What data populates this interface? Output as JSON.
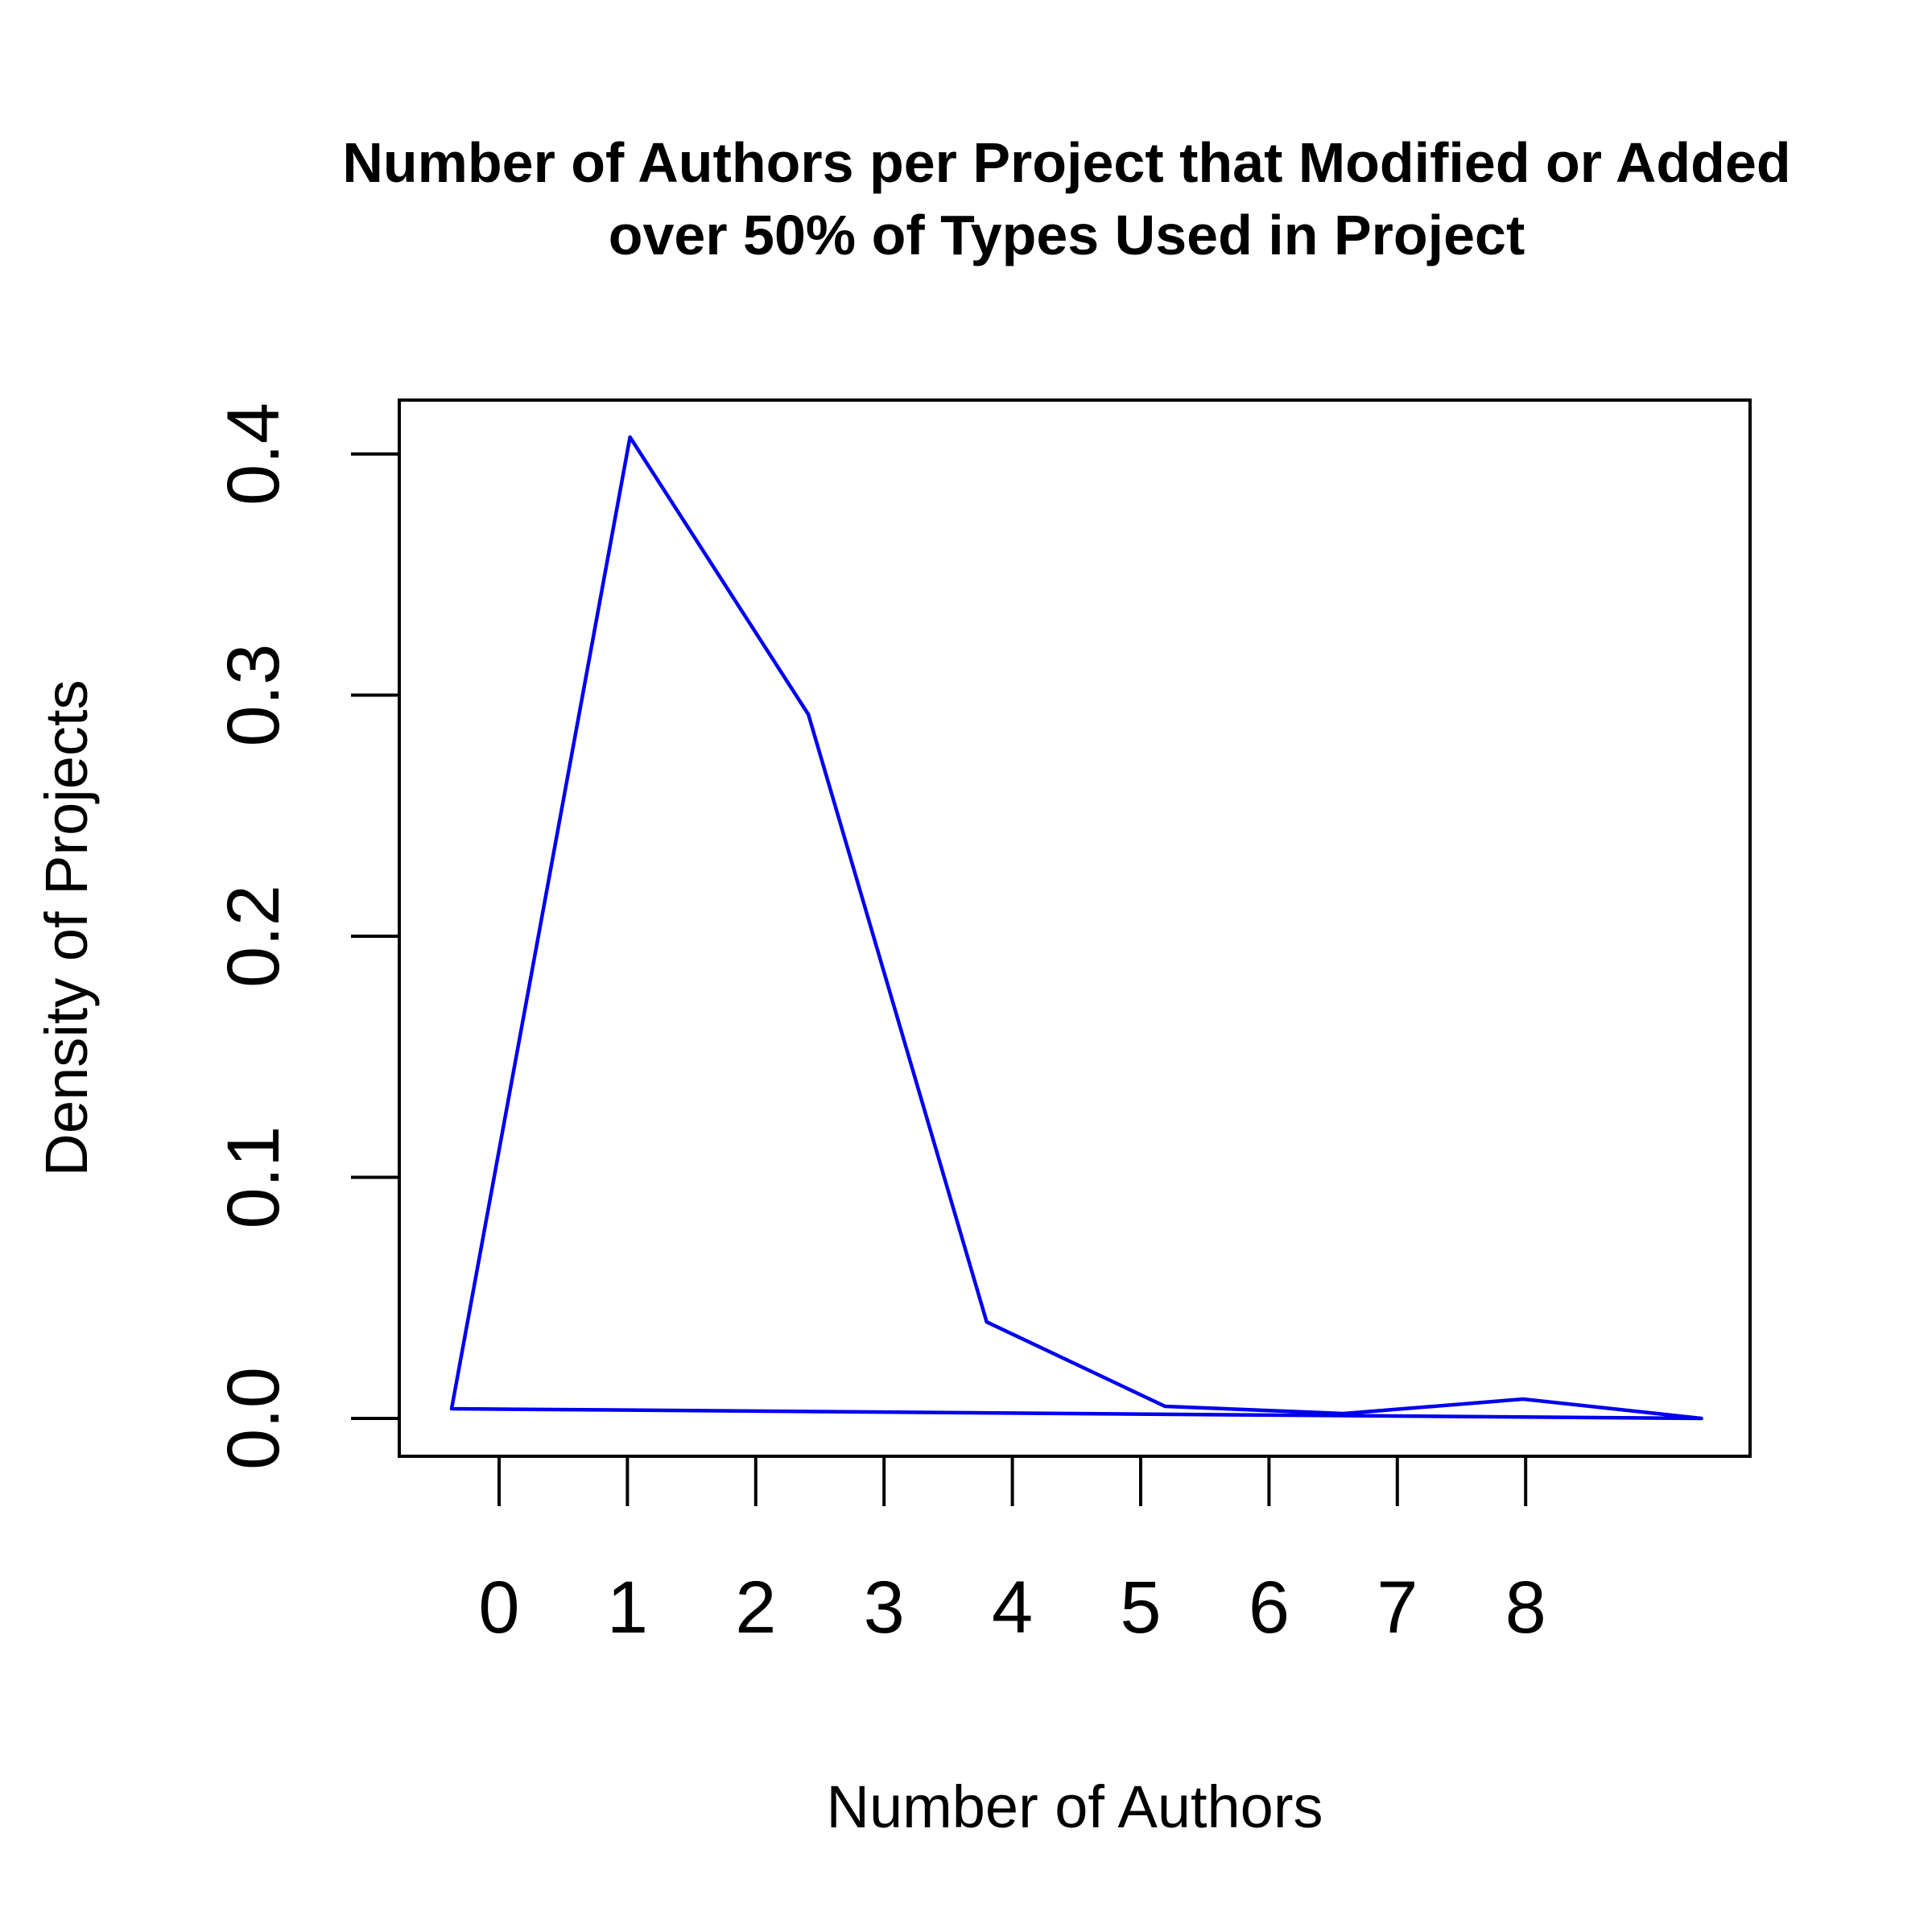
{
  "chart_data": {
    "type": "line",
    "title_lines": [
      "Number of Authors per Project that Modified or Added",
      "over 50% of Types Used in Project"
    ],
    "xlabel": "Number of Authors",
    "ylabel": "Density of Projects",
    "ylim": [
      0.0,
      0.4
    ],
    "y_ticks": [
      "0.0",
      "0.1",
      "0.2",
      "0.3",
      "0.4"
    ],
    "y_tick_values": [
      0.0,
      0.1,
      0.2,
      0.3,
      0.4
    ],
    "x_ticks": [
      "0",
      "1",
      "2",
      "3",
      "4",
      "5",
      "6",
      "7",
      "8"
    ],
    "x_tick_values": [
      0,
      1,
      2,
      3,
      4,
      5,
      6,
      7,
      8
    ],
    "grid": false,
    "legend": "none",
    "series": [
      {
        "color": "#0000ee",
        "x": [
          -0.37,
          1.02,
          2.41,
          3.8,
          5.19,
          6.58,
          7.98,
          9.37,
          -0.37
        ],
        "values": [
          0.004,
          0.407,
          0.292,
          0.04,
          0.005,
          0.002,
          0.008,
          0.0,
          0.004
        ]
      }
    ]
  }
}
